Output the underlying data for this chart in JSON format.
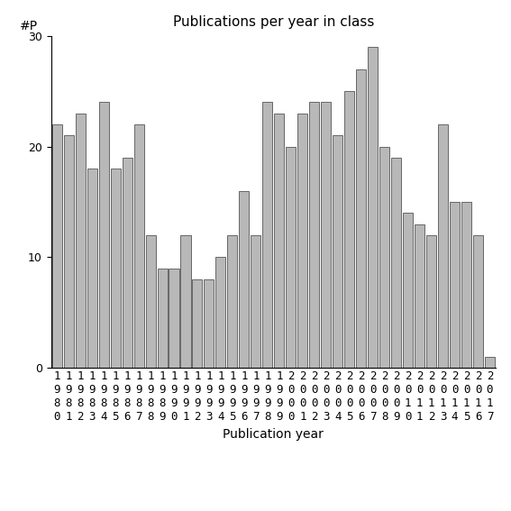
{
  "title": "Publications per year in class",
  "xlabel": "Publication year",
  "ylabel": "#P",
  "years": [
    "1980",
    "1981",
    "1982",
    "1983",
    "1984",
    "1985",
    "1986",
    "1987",
    "1988",
    "1989",
    "1990",
    "1991",
    "1992",
    "1993",
    "1994",
    "1995",
    "1996",
    "1997",
    "1998",
    "1999",
    "2000",
    "2001",
    "2002",
    "2003",
    "2004",
    "2005",
    "2006",
    "2007",
    "2008",
    "2009",
    "2010",
    "2011",
    "2012",
    "2013",
    "2014",
    "2015",
    "2016",
    "2017"
  ],
  "values": [
    22,
    21,
    23,
    18,
    24,
    18,
    19,
    22,
    12,
    9,
    9,
    12,
    8,
    8,
    10,
    12,
    16,
    12,
    24,
    23,
    20,
    23,
    24,
    24,
    21,
    25,
    27,
    29,
    20,
    19,
    14,
    13,
    12,
    22,
    15,
    15,
    12,
    1
  ],
  "bar_color": "#b8b8b8",
  "bar_edgecolor": "#555555",
  "ylim": [
    0,
    30
  ],
  "yticks": [
    0,
    10,
    20,
    30
  ],
  "bg_color": "#ffffff",
  "title_fontsize": 11,
  "axis_fontsize": 10,
  "tick_fontsize": 9
}
